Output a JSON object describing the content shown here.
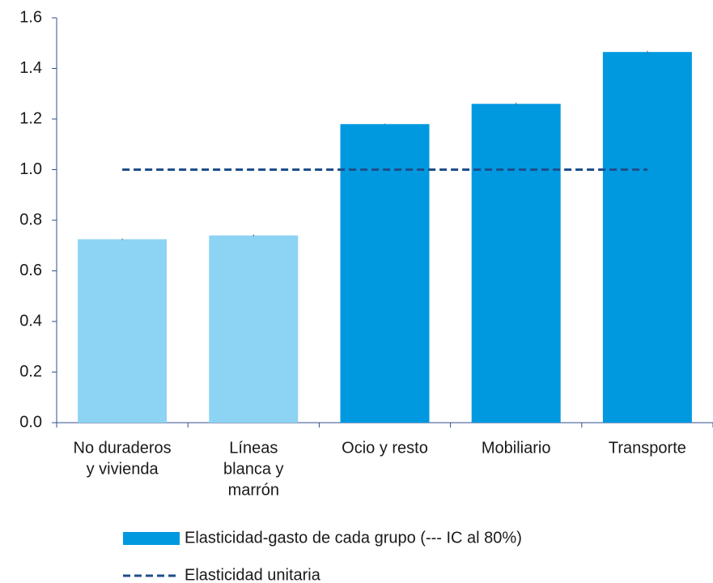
{
  "chart_data": {
    "type": "bar",
    "categories": [
      [
        "No duraderos",
        "y vivienda"
      ],
      [
        "Líneas",
        "blanca y",
        "marrón"
      ],
      [
        "Ocio y resto"
      ],
      [
        "Mobiliario"
      ],
      [
        "Transporte"
      ]
    ],
    "series": [
      {
        "name": "Elasticidad-gasto de cada grupo (--- IC al 80%)",
        "type": "bar",
        "color": "#0099e0",
        "colors": [
          "#8dd3f3",
          "#8dd3f3",
          "#0099e0",
          "#0099e0",
          "#0099e0"
        ],
        "values": [
          0.725,
          0.74,
          1.18,
          1.26,
          1.465
        ],
        "errors": [
          0.003,
          0.004,
          0.002,
          0.005,
          0.005
        ]
      },
      {
        "name": "Elasticidad unitaria",
        "type": "line",
        "color": "#1f4e8c",
        "dash": true,
        "values": [
          1.0,
          1.0,
          1.0,
          1.0,
          1.0
        ]
      }
    ],
    "ylim": [
      0,
      1.6
    ],
    "yticks": [
      {
        "value": 0,
        "label": "0.0"
      },
      0.2,
      0.4,
      0.6,
      0.8,
      {
        "value": 1,
        "label": "1.0"
      },
      1.2,
      1.4,
      1.6
    ],
    "legend": "bottom"
  }
}
